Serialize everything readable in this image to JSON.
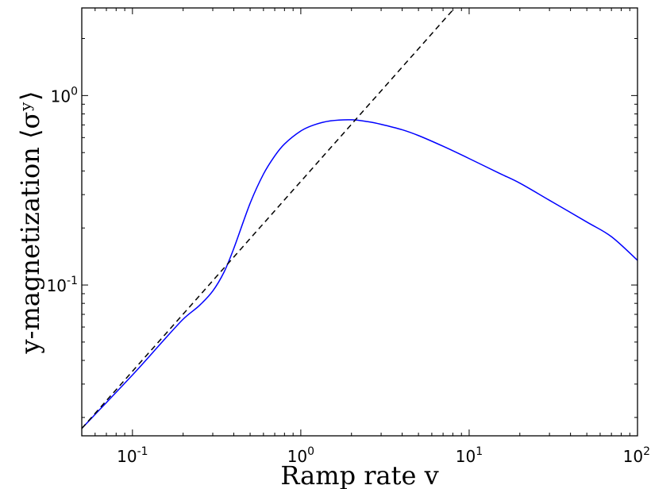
{
  "chart_data": {
    "type": "line",
    "xlabel": "Ramp rate v",
    "ylabel": "y-magnetization ⟨σʸ⟩",
    "x_scale": "log",
    "y_scale": "log",
    "xlim": [
      0.05,
      100
    ],
    "ylim": [
      0.016,
      2.9
    ],
    "grid": false,
    "x_ticks": [
      {
        "value": 0.1,
        "base": "10",
        "exp": "-1"
      },
      {
        "value": 1,
        "base": "10",
        "exp": "0"
      },
      {
        "value": 10,
        "base": "10",
        "exp": "1"
      },
      {
        "value": 100,
        "base": "10",
        "exp": "2"
      }
    ],
    "y_ticks": [
      {
        "value": 0.1,
        "base": "10",
        "exp": "-1"
      },
      {
        "value": 1,
        "base": "10",
        "exp": "0"
      }
    ],
    "series": [
      {
        "style": "solid",
        "color": "#0000ff",
        "x": [
          0.05,
          0.1,
          0.15,
          0.2,
          0.25,
          0.3,
          0.35,
          0.4,
          0.5,
          0.6,
          0.7,
          0.8,
          1.0,
          1.2,
          1.5,
          2.0,
          2.5,
          3.0,
          4.0,
          5.0,
          7.0,
          10,
          15,
          20,
          30,
          50,
          70,
          100
        ],
        "y": [
          0.0175,
          0.0335,
          0.05,
          0.066,
          0.078,
          0.093,
          0.117,
          0.156,
          0.27,
          0.385,
          0.48,
          0.555,
          0.65,
          0.7,
          0.735,
          0.745,
          0.728,
          0.705,
          0.66,
          0.615,
          0.54,
          0.465,
          0.39,
          0.345,
          0.28,
          0.215,
          0.18,
          0.135
        ]
      },
      {
        "style": "dashed",
        "color": "#000000",
        "x": [
          0.05,
          8.2
        ],
        "y": [
          0.0175,
          2.9
        ]
      }
    ]
  }
}
